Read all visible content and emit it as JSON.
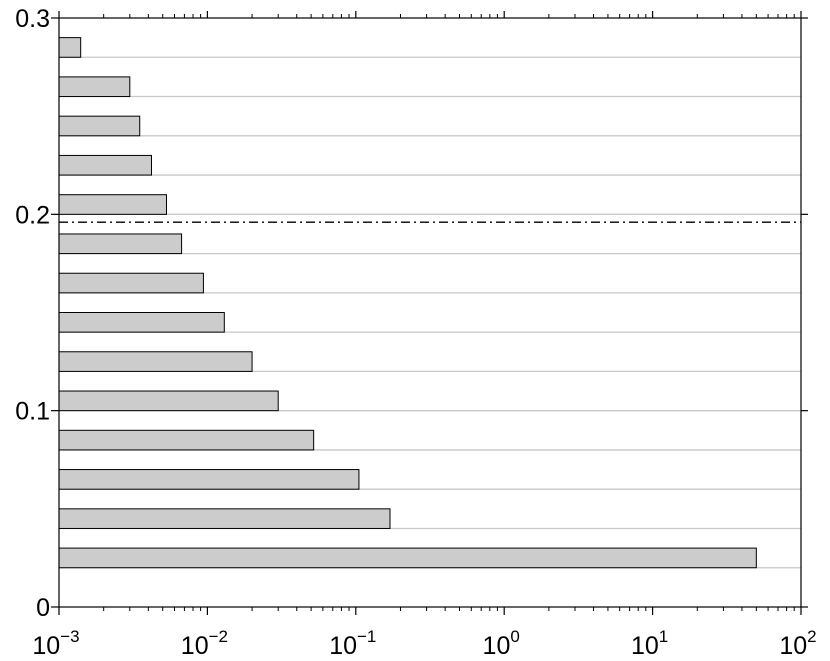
{
  "chart_data": {
    "type": "bar",
    "orientation": "horizontal",
    "x_scale": "log",
    "xlim": [
      0.001,
      100
    ],
    "ylim": [
      0,
      0.3
    ],
    "x_ticks": [
      {
        "base": "10",
        "exp": "−3"
      },
      {
        "base": "10",
        "exp": "−2"
      },
      {
        "base": "10",
        "exp": "−1"
      },
      {
        "base": "10",
        "exp": "0"
      },
      {
        "base": "10",
        "exp": "1"
      },
      {
        "base": "10",
        "exp": "2"
      }
    ],
    "y_ticks": [
      "0",
      "0.1",
      "0.2",
      "0.3"
    ],
    "grid": "horizontal",
    "bar_color": "#cccccc",
    "bars": [
      {
        "y0": 0.02,
        "y1": 0.03,
        "x": 50
      },
      {
        "y0": 0.04,
        "y1": 0.05,
        "x": 0.17
      },
      {
        "y0": 0.06,
        "y1": 0.07,
        "x": 0.105
      },
      {
        "y0": 0.08,
        "y1": 0.09,
        "x": 0.052
      },
      {
        "y0": 0.1,
        "y1": 0.11,
        "x": 0.03
      },
      {
        "y0": 0.12,
        "y1": 0.13,
        "x": 0.02
      },
      {
        "y0": 0.14,
        "y1": 0.15,
        "x": 0.013
      },
      {
        "y0": 0.16,
        "y1": 0.17,
        "x": 0.0094
      },
      {
        "y0": 0.18,
        "y1": 0.19,
        "x": 0.0067
      },
      {
        "y0": 0.2,
        "y1": 0.21,
        "x": 0.0053
      },
      {
        "y0": 0.22,
        "y1": 0.23,
        "x": 0.0042
      },
      {
        "y0": 0.24,
        "y1": 0.25,
        "x": 0.0035
      },
      {
        "y0": 0.26,
        "y1": 0.27,
        "x": 0.003
      },
      {
        "y0": 0.28,
        "y1": 0.29,
        "x": 0.0014
      }
    ],
    "reference_line": {
      "y": 0.196,
      "style": "dash-dot"
    }
  }
}
